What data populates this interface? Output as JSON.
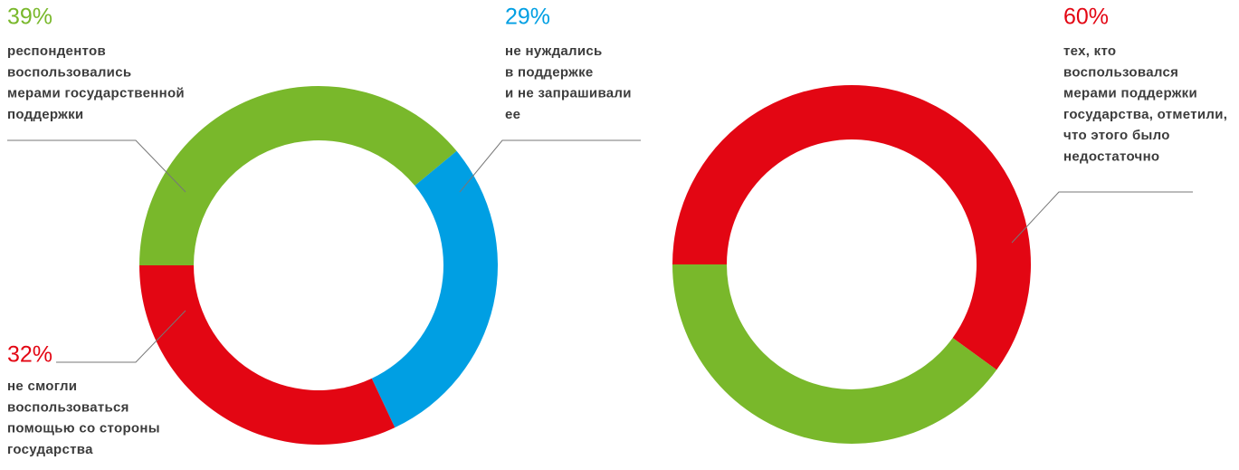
{
  "chart_data": [
    {
      "type": "pie",
      "values": [
        39,
        29,
        32
      ],
      "value_labels": [
        "39%",
        "29%",
        "32%"
      ],
      "colors": [
        "#79b82b",
        "#009fe3",
        "#e30613"
      ],
      "descriptions": [
        [
          "респондентов",
          "воспользовались",
          "мерами государственной",
          "поддержки"
        ],
        [
          "не нуждались",
          "в поддержке",
          "и не запрашивали",
          "ее"
        ],
        [
          "не смогли",
          "воспользоваться",
          "помощью со стороны",
          "государства"
        ]
      ]
    },
    {
      "type": "pie",
      "values": [
        60,
        40
      ],
      "value_labels": [
        "60%",
        null
      ],
      "colors": [
        "#e30613",
        "#79b82b"
      ],
      "descriptions": [
        [
          "тех, кто",
          "воспользовался",
          "мерами поддержки",
          "государства, отметили,",
          "что этого было",
          "недостаточно"
        ],
        null
      ]
    }
  ]
}
